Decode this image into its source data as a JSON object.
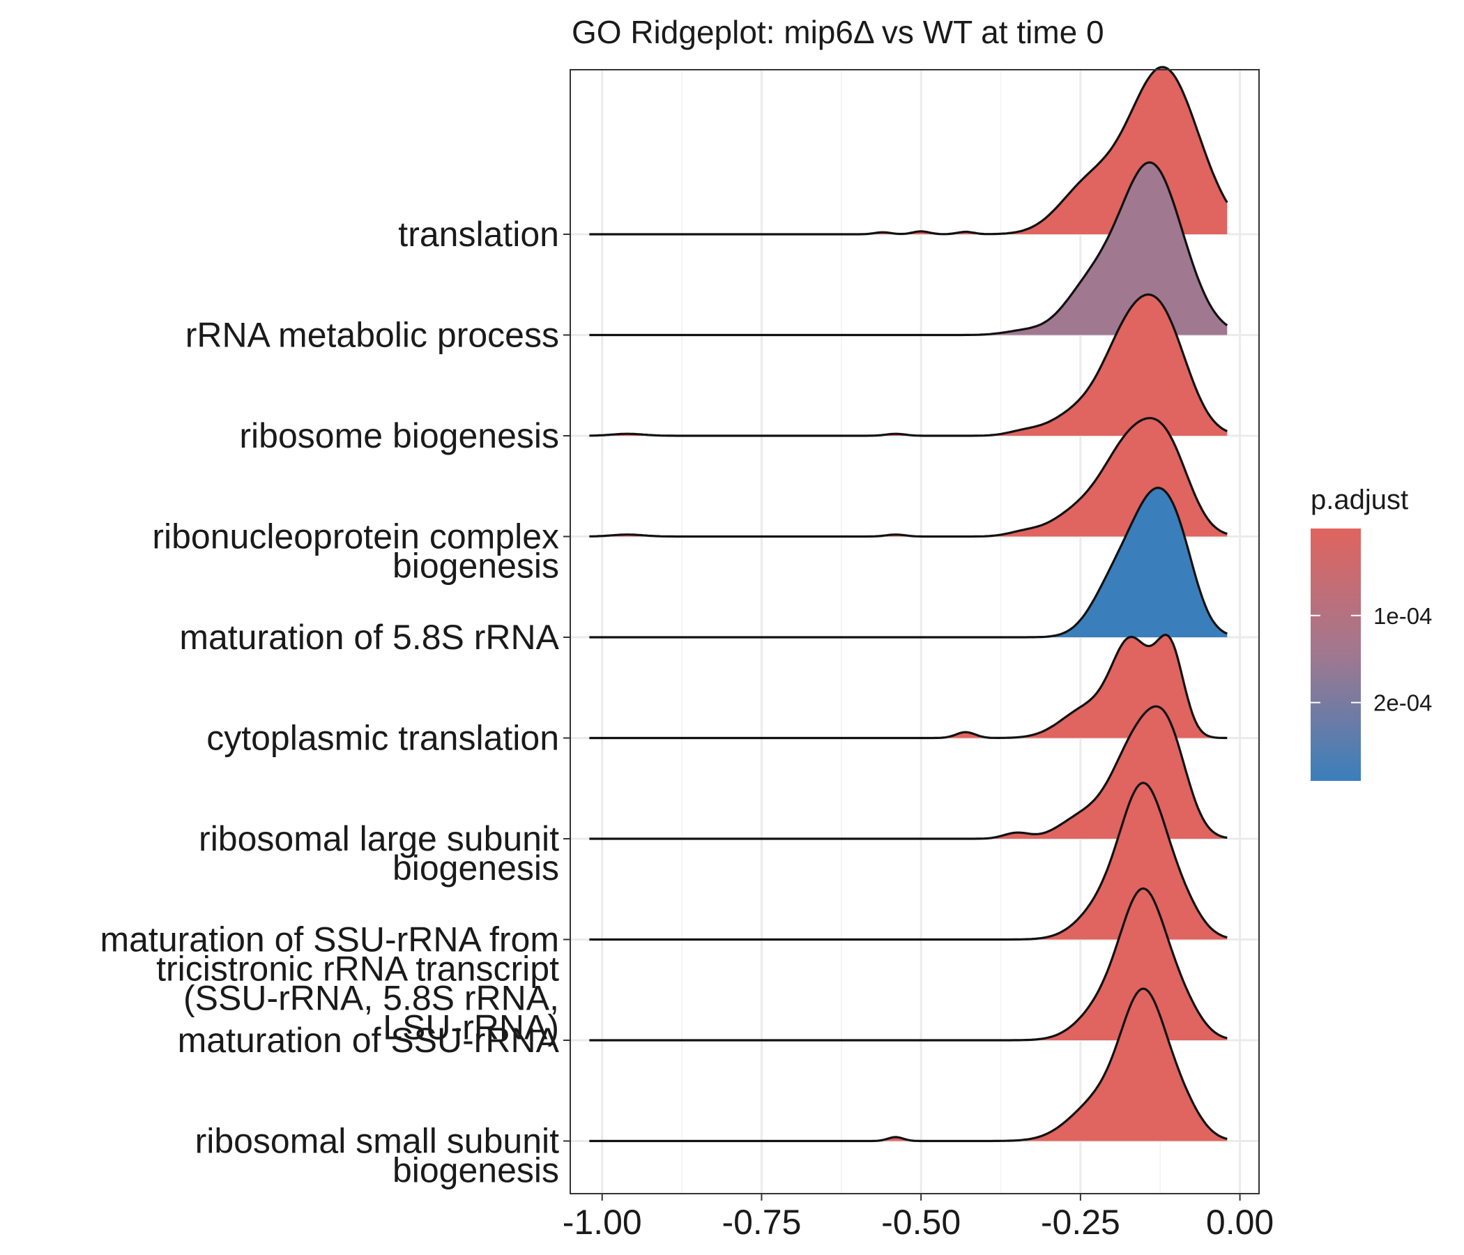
{
  "chart_data": {
    "type": "ridgeline",
    "title": "GO Ridgeplot: mip6Δ vs WT at time 0",
    "xlabel": "",
    "ylabel": "",
    "xlim": [
      -1.05,
      0.03
    ],
    "xticks": [
      -1.0,
      -0.75,
      -0.5,
      -0.25,
      0.0
    ],
    "xtick_labels": [
      "-1.00",
      "-0.75",
      "-0.50",
      "-0.25",
      "0.00"
    ],
    "grid": true,
    "legend": {
      "title": "p.adjust",
      "position": "right",
      "type": "colorbar",
      "tick_values": [
        0.0001,
        0.0002
      ],
      "tick_labels": [
        "1e-04",
        "2e-04"
      ],
      "range": [
        5e-08,
        0.00029
      ],
      "low_color": "#e0645f",
      "high_color": "#3a7fbb"
    },
    "curve_range": [
      -1.02,
      -0.02
    ],
    "series": [
      {
        "label_lines": [
          "translation"
        ],
        "p_adjust": 1e-06,
        "color": "#e0645f",
        "peaks": [
          [
            -0.12,
            0.055,
            1.7
          ],
          [
            -0.24,
            0.045,
            0.45
          ],
          [
            -0.56,
            0.013,
            0.02
          ],
          [
            -0.5,
            0.013,
            0.03
          ],
          [
            -0.43,
            0.013,
            0.025
          ]
        ]
      },
      {
        "label_lines": [
          "rRNA metabolic process"
        ],
        "p_adjust": 0.00018,
        "color": "#a07890",
        "peaks": [
          [
            -0.14,
            0.05,
            1.75
          ],
          [
            -0.24,
            0.04,
            0.4
          ],
          [
            -0.34,
            0.03,
            0.04
          ]
        ]
      },
      {
        "label_lines": [
          "ribosome biogenesis"
        ],
        "p_adjust": 2e-06,
        "color": "#e0645f",
        "peaks": [
          [
            -0.18,
            0.04,
            0.85
          ],
          [
            -0.12,
            0.04,
            1.05
          ],
          [
            -0.26,
            0.04,
            0.2
          ],
          [
            -0.34,
            0.025,
            0.04
          ],
          [
            -0.96,
            0.025,
            0.02
          ],
          [
            -0.54,
            0.015,
            0.02
          ]
        ]
      },
      {
        "label_lines": [
          "ribonucleoprotein complex",
          "biogenesis"
        ],
        "p_adjust": 2e-06,
        "color": "#e0645f",
        "peaks": [
          [
            -0.17,
            0.045,
            0.95
          ],
          [
            -0.11,
            0.035,
            0.65
          ],
          [
            -0.26,
            0.04,
            0.2
          ],
          [
            -0.34,
            0.025,
            0.04
          ],
          [
            -0.96,
            0.025,
            0.02
          ],
          [
            -0.54,
            0.015,
            0.02
          ]
        ]
      },
      {
        "label_lines": [
          "maturation of 5.8S rRNA"
        ],
        "p_adjust": 0.00029,
        "color": "#3a7fbb",
        "peaks": [
          [
            -0.13,
            0.04,
            1.4
          ],
          [
            -0.2,
            0.035,
            0.45
          ],
          [
            -0.09,
            0.025,
            0.25
          ]
        ]
      },
      {
        "label_lines": [
          "cytoplasmic translation"
        ],
        "p_adjust": 1e-06,
        "color": "#e0645f",
        "peaks": [
          [
            -0.17,
            0.03,
            0.95
          ],
          [
            -0.11,
            0.022,
            0.9
          ],
          [
            -0.24,
            0.04,
            0.3
          ],
          [
            -0.43,
            0.015,
            0.06
          ]
        ]
      },
      {
        "label_lines": [
          "ribosomal large subunit",
          "biogenesis"
        ],
        "p_adjust": 2e-06,
        "color": "#e0645f",
        "peaks": [
          [
            -0.16,
            0.04,
            1.0
          ],
          [
            -0.11,
            0.03,
            0.75
          ],
          [
            -0.25,
            0.035,
            0.2
          ],
          [
            -0.35,
            0.02,
            0.06
          ]
        ]
      },
      {
        "label_lines": [
          "maturation of SSU-rRNA from",
          "tricistronic rRNA transcript",
          "(SSU-rRNA, 5.8S rRNA,",
          "LSU-rRNA)"
        ],
        "p_adjust": 2e-06,
        "color": "#e0645f",
        "peaks": [
          [
            -0.15,
            0.035,
            1.45
          ],
          [
            -0.21,
            0.04,
            0.35
          ],
          [
            -0.09,
            0.03,
            0.3
          ]
        ]
      },
      {
        "label_lines": [
          "maturation of SSU-rRNA"
        ],
        "p_adjust": 2e-06,
        "color": "#e0645f",
        "peaks": [
          [
            -0.15,
            0.035,
            1.4
          ],
          [
            -0.21,
            0.04,
            0.35
          ],
          [
            -0.09,
            0.03,
            0.3
          ]
        ]
      },
      {
        "label_lines": [
          "ribosomal small subunit",
          "biogenesis"
        ],
        "p_adjust": 2e-06,
        "color": "#e0645f",
        "peaks": [
          [
            -0.15,
            0.035,
            1.4
          ],
          [
            -0.22,
            0.045,
            0.4
          ],
          [
            -0.09,
            0.03,
            0.3
          ],
          [
            -0.54,
            0.012,
            0.04
          ]
        ]
      }
    ]
  }
}
